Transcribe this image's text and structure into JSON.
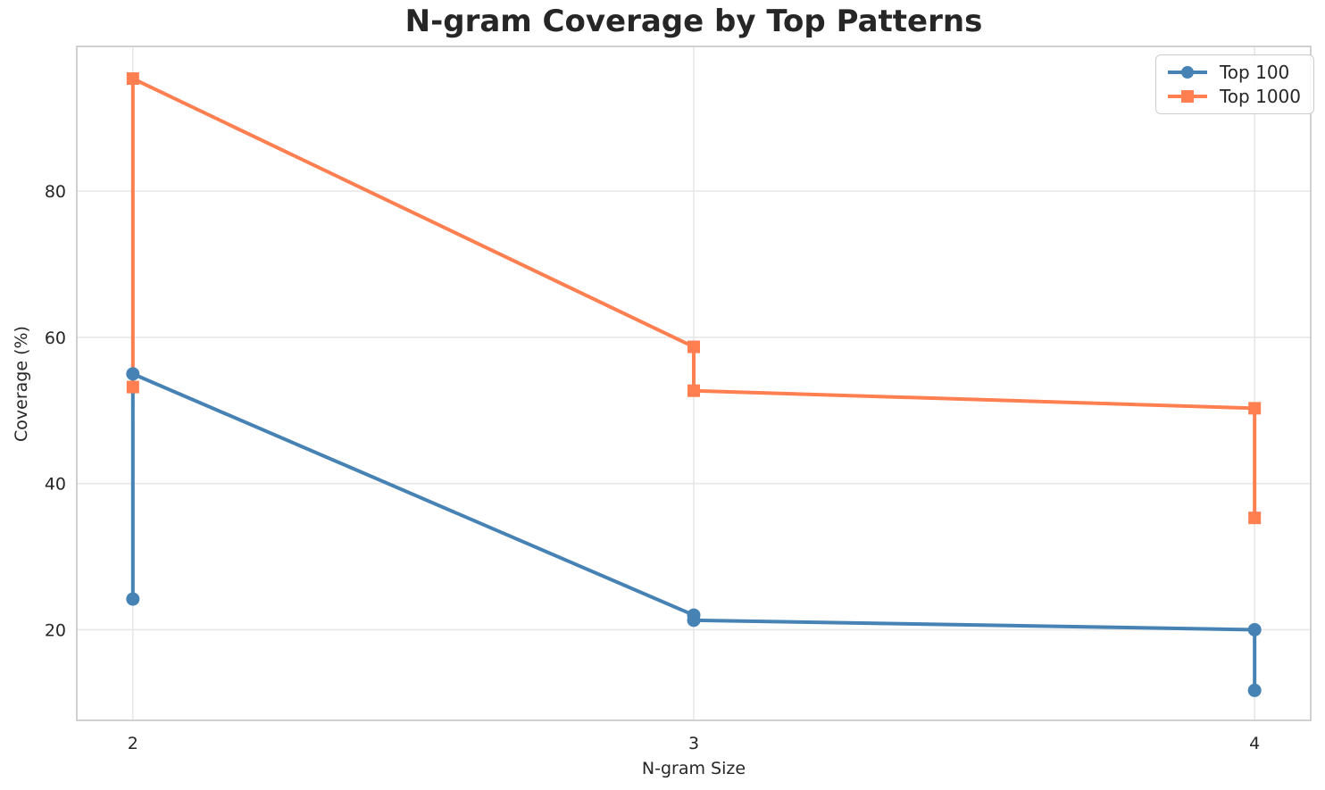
{
  "chart_data": {
    "type": "line",
    "title": "N-gram Coverage by Top Patterns",
    "xlabel": "N-gram Size",
    "ylabel": "Coverage (%)",
    "x_ticks": [
      2,
      3,
      4
    ],
    "y_ticks": [
      20,
      40,
      60,
      80
    ],
    "xlim": [
      1.9,
      4.1
    ],
    "ylim": [
      7.6,
      99.8
    ],
    "grid": true,
    "legend_position": "upper right",
    "series": [
      {
        "name": "Top 100",
        "color": "#4682B4",
        "marker": "circle",
        "points": [
          [
            2,
            24.2
          ],
          [
            2,
            55.0
          ],
          [
            3,
            22.0
          ],
          [
            3,
            21.3
          ],
          [
            4,
            20.0
          ],
          [
            4,
            11.7
          ]
        ]
      },
      {
        "name": "Top 1000",
        "color": "#FF7F50",
        "marker": "square",
        "points": [
          [
            2,
            53.2
          ],
          [
            2,
            95.4
          ],
          [
            3,
            58.7
          ],
          [
            3,
            52.7
          ],
          [
            4,
            50.3
          ],
          [
            4,
            35.3
          ]
        ]
      }
    ],
    "colors": {
      "grid": "#e7e7e7",
      "spine": "#cccccc",
      "text": "#262626",
      "background": "#ffffff"
    }
  }
}
